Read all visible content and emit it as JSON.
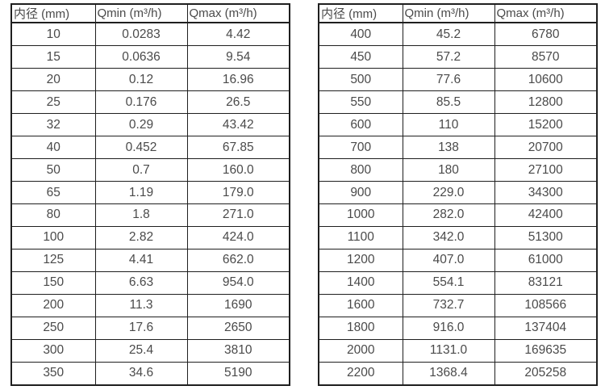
{
  "colors": {
    "border": "#1f1f1f",
    "text": "#4a4a4a",
    "background": "#ffffff"
  },
  "tables": [
    {
      "name": "flow-table-small-diameters",
      "headers": [
        "内径 (mm)",
        "Qmin (m³/h)",
        "Qmax (m³/h)"
      ],
      "rows": [
        [
          "10",
          "0.0283",
          "4.42"
        ],
        [
          "15",
          "0.0636",
          "9.54"
        ],
        [
          "20",
          "0.12",
          "16.96"
        ],
        [
          "25",
          "0.176",
          "26.5"
        ],
        [
          "32",
          "0.29",
          "43.42"
        ],
        [
          "40",
          "0.452",
          "67.85"
        ],
        [
          "50",
          "0.7",
          "160.0"
        ],
        [
          "65",
          "1.19",
          "179.0"
        ],
        [
          "80",
          "1.8",
          "271.0"
        ],
        [
          "100",
          "2.82",
          "424.0"
        ],
        [
          "125",
          "4.41",
          "662.0"
        ],
        [
          "150",
          "6.63",
          "954.0"
        ],
        [
          "200",
          "11.3",
          "1690"
        ],
        [
          "250",
          "17.6",
          "2650"
        ],
        [
          "300",
          "25.4",
          "3810"
        ],
        [
          "350",
          "34.6",
          "5190"
        ]
      ]
    },
    {
      "name": "flow-table-large-diameters",
      "headers": [
        "内径 (mm)",
        "Qmin (m³/h)",
        "Qmax (m³/h)"
      ],
      "rows": [
        [
          "400",
          "45.2",
          "6780"
        ],
        [
          "450",
          "57.2",
          "8570"
        ],
        [
          "500",
          "77.6",
          "10600"
        ],
        [
          "550",
          "85.5",
          "12800"
        ],
        [
          "600",
          "110",
          "15200"
        ],
        [
          "700",
          "138",
          "20700"
        ],
        [
          "800",
          "180",
          "27100"
        ],
        [
          "900",
          "229.0",
          "34300"
        ],
        [
          "1000",
          "282.0",
          "42400"
        ],
        [
          "1100",
          "342.0",
          "51300"
        ],
        [
          "1200",
          "407.0",
          "61000"
        ],
        [
          "1400",
          "554.1",
          "83121"
        ],
        [
          "1600",
          "732.7",
          "108566"
        ],
        [
          "1800",
          "916.0",
          "137404"
        ],
        [
          "2000",
          "1131.0",
          "169635"
        ],
        [
          "2200",
          "1368.4",
          "205258"
        ]
      ]
    }
  ]
}
